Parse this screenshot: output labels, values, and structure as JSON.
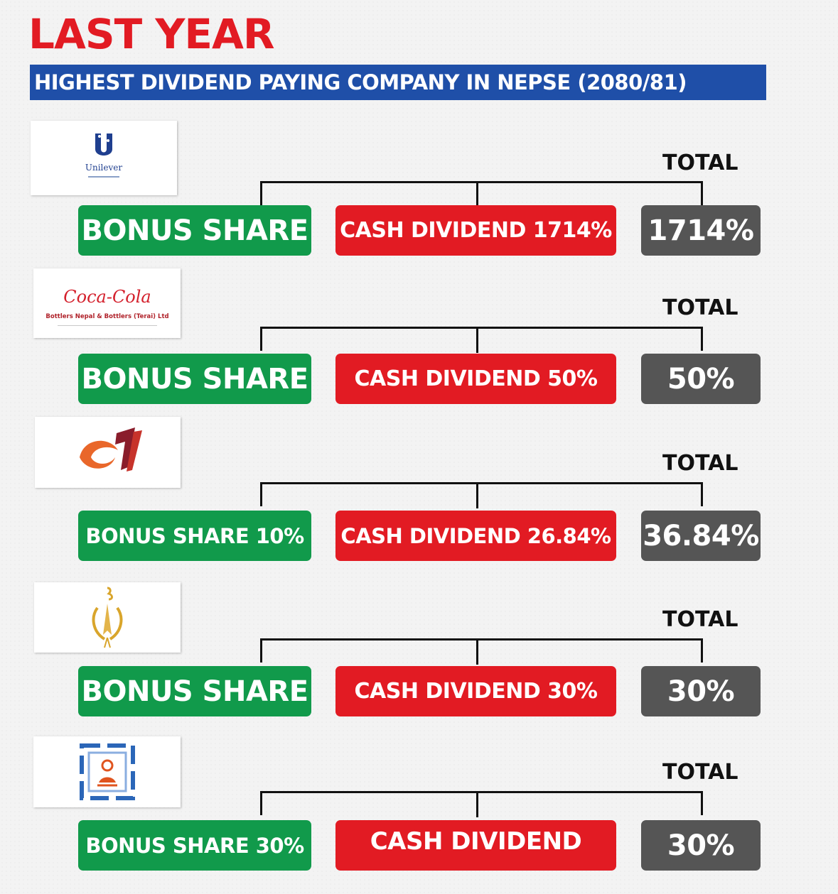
{
  "headline": "LAST YEAR",
  "subhead": "HIGHEST DIVIDEND PAYING COMPANY IN NEPSE (2080/81)",
  "colors": {
    "red": "#e21b23",
    "green": "#119a4b",
    "gray": "#555555",
    "blue": "#1f4fa8"
  },
  "rows": [
    {
      "logo_icon": "unilever-logo-icon",
      "logo_text": "Unilever",
      "total_label": "TOTAL",
      "bonus": "BONUS SHARE",
      "cash": "CASH DIVIDEND 1714%",
      "total": "1714%"
    },
    {
      "logo_icon": "coca-cola-logo-icon",
      "logo_text": "Coca-Cola",
      "logo_subtext": "Bottlers Nepal & Bottlers (Terai) Ltd",
      "total_label": "TOTAL",
      "bonus": "BONUS SHARE",
      "cash": "CASH DIVIDEND 50%",
      "total": "50%"
    },
    {
      "logo_icon": "swirl-logo-icon",
      "total_label": "TOTAL",
      "bonus": "BONUS SHARE 10%",
      "cash": "CASH DIVIDEND 26.84%",
      "total": "36.84%"
    },
    {
      "logo_icon": "emblem-logo-icon",
      "total_label": "TOTAL",
      "bonus": "BONUS SHARE",
      "cash": "CASH DIVIDEND 30%",
      "total": "30%"
    },
    {
      "logo_icon": "seal-logo-icon",
      "total_label": "TOTAL",
      "bonus": "BONUS SHARE 30%",
      "cash": "CASH DIVIDEND",
      "total": "30%"
    }
  ]
}
